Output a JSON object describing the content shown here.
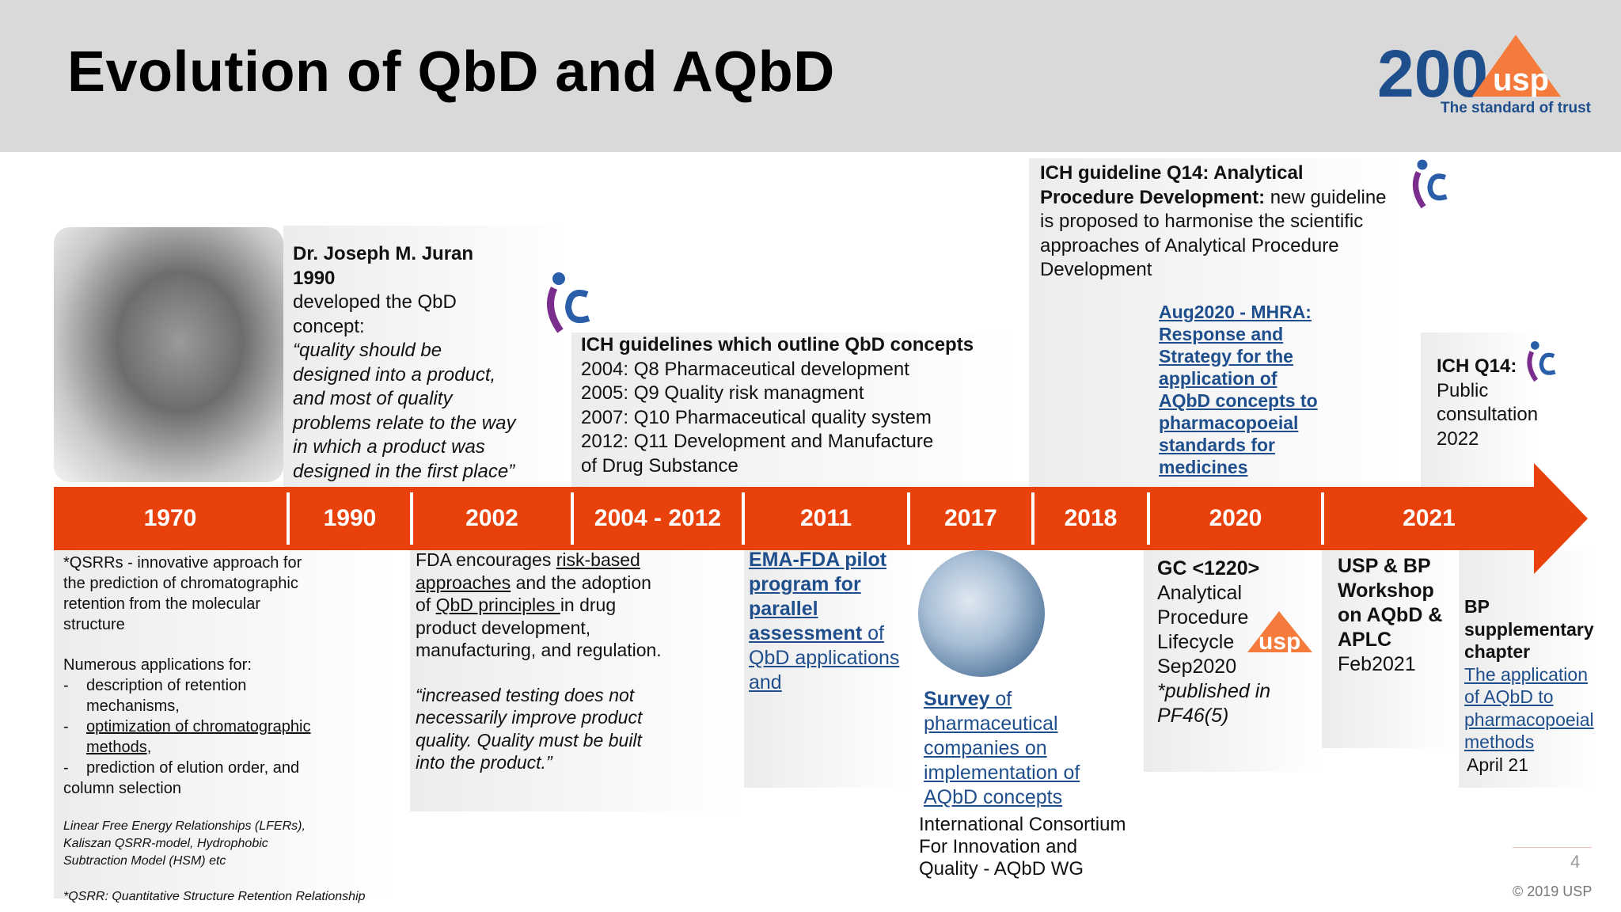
{
  "title": "Evolution of QbD and AQbD",
  "logo": {
    "text": "200",
    "badge": "usp",
    "tagline": "The standard of trust"
  },
  "timeline_years": [
    "1970",
    "1990",
    "2002",
    "2004 - 2012",
    "2011",
    "2017",
    "2018",
    "2020",
    "2021"
  ],
  "juran": {
    "name": "Dr. Joseph M. Juran",
    "year": "1990",
    "line1": "developed the QbD",
    "line2": "concept:",
    "quote": [
      "“quality should be",
      "designed into a product,",
      "and most of quality",
      "problems relate to the way",
      "in which a product was",
      "designed in the first place”"
    ]
  },
  "ich_outline": {
    "heading": "ICH guidelines which outline QbD concepts",
    "lines": [
      "2004: Q8 Pharmaceutical development",
      "2005: Q9 Quality risk managment",
      "2007: Q10 Pharmaceutical quality system",
      "2012: Q11 Development and Manufacture",
      "of Drug Substance"
    ]
  },
  "q14": {
    "bold1": "ICH guideline Q14: Analytical",
    "bold2": "Procedure Development:",
    "rest2": " new guideline",
    "lines": [
      "is proposed to harmonise the scientific",
      "approaches of Analytical Procedure",
      "Development"
    ]
  },
  "mhra": {
    "lines": [
      "Aug2020  - MHRA:",
      "Response and",
      "Strategy for the",
      "application of",
      "AQbD concepts to",
      "pharmacopoeial",
      "standards for",
      "medicines"
    ]
  },
  "q14_consult": {
    "bold": "ICH Q14:",
    "lines": [
      "Public",
      "consultation",
      "2022"
    ]
  },
  "qsrr": {
    "intro": [
      "*QSRRs - innovative approach for",
      "the prediction of chromatographic",
      "retention from the molecular",
      "structure"
    ],
    "apps_head": "Numerous applications for:",
    "b1a": "description of retention",
    "b1b": "mechanisms,",
    "b2a": "optimization of chromatographic",
    "b2b": "methods",
    "b2c": ",",
    "b3": "prediction of elution order, and",
    "b3b": "column selection",
    "models": [
      "Linear Free Energy Relationships (LFERs),",
      "Kaliszan QSRR-model, Hydrophobic",
      "Subtraction Model (HSM) etc"
    ],
    "footnote": "*QSRR: Quantitative Structure Retention Relationship"
  },
  "fda": {
    "l1a": "FDA encourages ",
    "l1b": "risk-based",
    "l2a": "approaches",
    "l2b": " and the adoption",
    "l3a": "of ",
    "l3b": "QbD principles ",
    "l3c": "in drug",
    "l4": "product development,",
    "l5": "manufacturing, and regulation.",
    "quote": [
      "“increased testing does not",
      "necessarily improve product",
      "quality. Quality must be built",
      "into the product.”"
    ]
  },
  "ema": {
    "b1": "EMA-FDA pilot",
    "b2": "program for",
    "b3": "parallel",
    "b4": "assessment",
    "b4b": " of",
    "l5": "QbD applications",
    "l6": "and"
  },
  "survey": {
    "s1": "Survey",
    "s1b": " of",
    "lines": [
      "pharmaceutical",
      "companies on",
      "implementation of",
      "AQbD concepts"
    ],
    "org": [
      "International Consortium",
      "For Innovation and",
      "Quality - AQbD WG"
    ]
  },
  "gc": {
    "bold": "GC <1220>",
    "lines": [
      "Analytical",
      "Procedure",
      "Lifecycle",
      "Sep2020"
    ],
    "note": [
      "*published in",
      "PF46(5)"
    ],
    "badge": "usp"
  },
  "workshop": {
    "bold": [
      "USP & BP",
      "Workshop",
      "on AQbD &",
      "APLC"
    ],
    "date": "Feb2021"
  },
  "bp": {
    "bold": [
      "BP",
      "supplementary",
      "chapter"
    ],
    "links": [
      "The application",
      "of AQbD to",
      "pharmacopoeial",
      "methods"
    ],
    "date": "April 21"
  },
  "footer": {
    "page": "4",
    "copyright": "© 2019 USP"
  },
  "colors": {
    "timeline": "#e8410b",
    "link": "#1f4e8c",
    "header_bg": "#d9d9d9"
  }
}
